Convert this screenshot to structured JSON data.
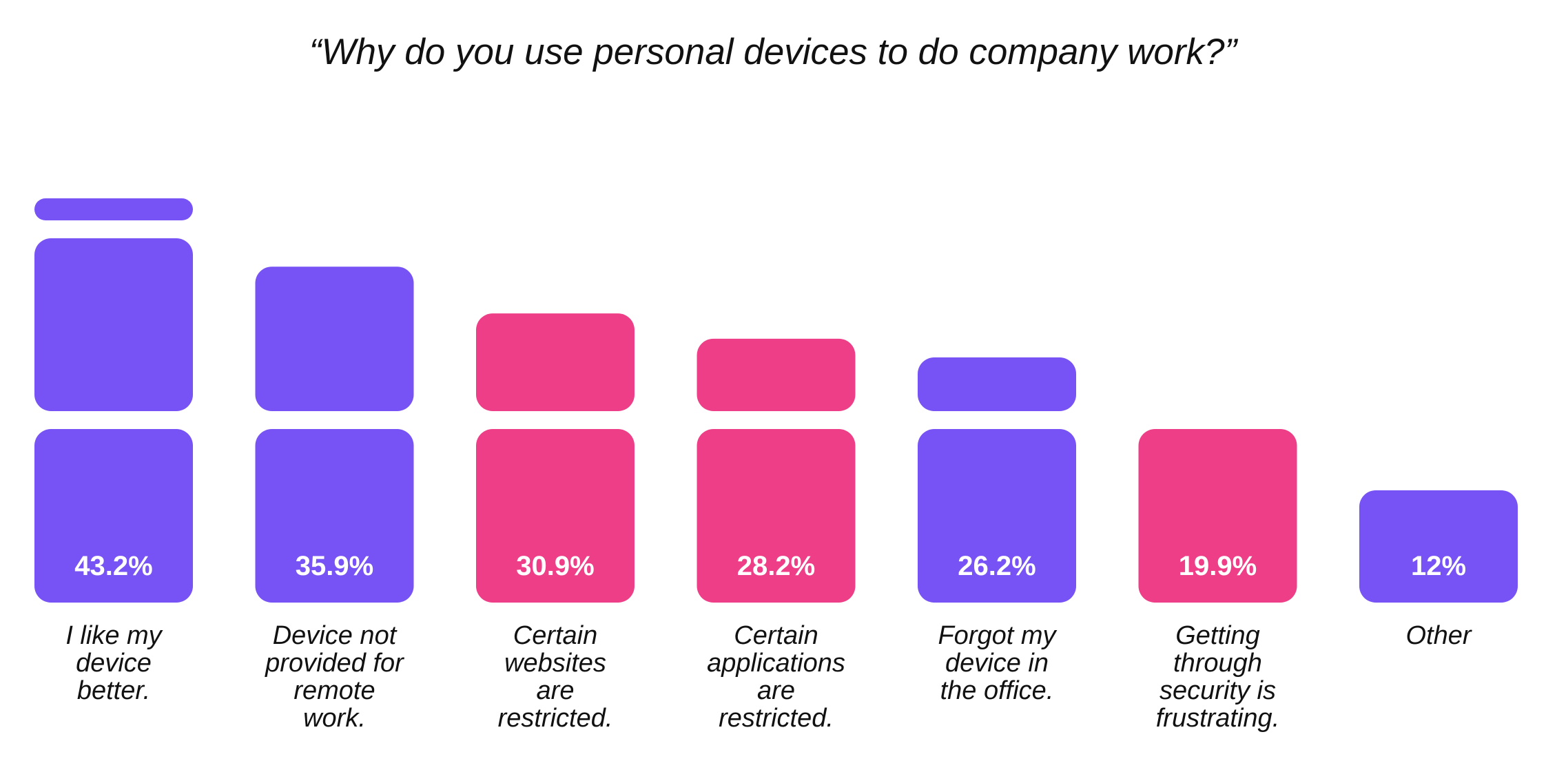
{
  "chart_data": {
    "type": "bar",
    "title": "“Why do you use personal devices to do company work?”",
    "xlabel": "",
    "ylabel": "",
    "ylim": [
      0,
      43.2
    ],
    "grid": false,
    "legend": "none",
    "colors": {
      "purple": "#7752F5",
      "pink": "#EF3E88"
    },
    "categories": [
      "I like my device better.",
      "Device not provided for remote work.",
      "Certain websites are restricted.",
      "Certain applications are restricted.",
      "Forgot my device in the office.",
      "Getting through security is frustrating.",
      "Other"
    ],
    "category_lines": [
      [
        "I like my",
        "device",
        "better."
      ],
      [
        "Device not",
        "provided for",
        "remote",
        "work."
      ],
      [
        "Certain",
        "websites",
        "are",
        "restricted."
      ],
      [
        "Certain",
        "applications",
        "are",
        "restricted."
      ],
      [
        "Forgot my",
        "device in",
        "the office."
      ],
      [
        "Getting",
        "through",
        "security is",
        "frustrating."
      ],
      [
        "Other"
      ]
    ],
    "values": [
      43.2,
      35.9,
      30.9,
      28.2,
      26.2,
      19.9,
      12
    ],
    "value_labels": [
      "43.2%",
      "35.9%",
      "30.9%",
      "28.2%",
      "26.2%",
      "19.9%",
      "12%"
    ],
    "bar_colors": [
      "purple",
      "purple",
      "pink",
      "pink",
      "purple",
      "pink",
      "purple"
    ]
  }
}
